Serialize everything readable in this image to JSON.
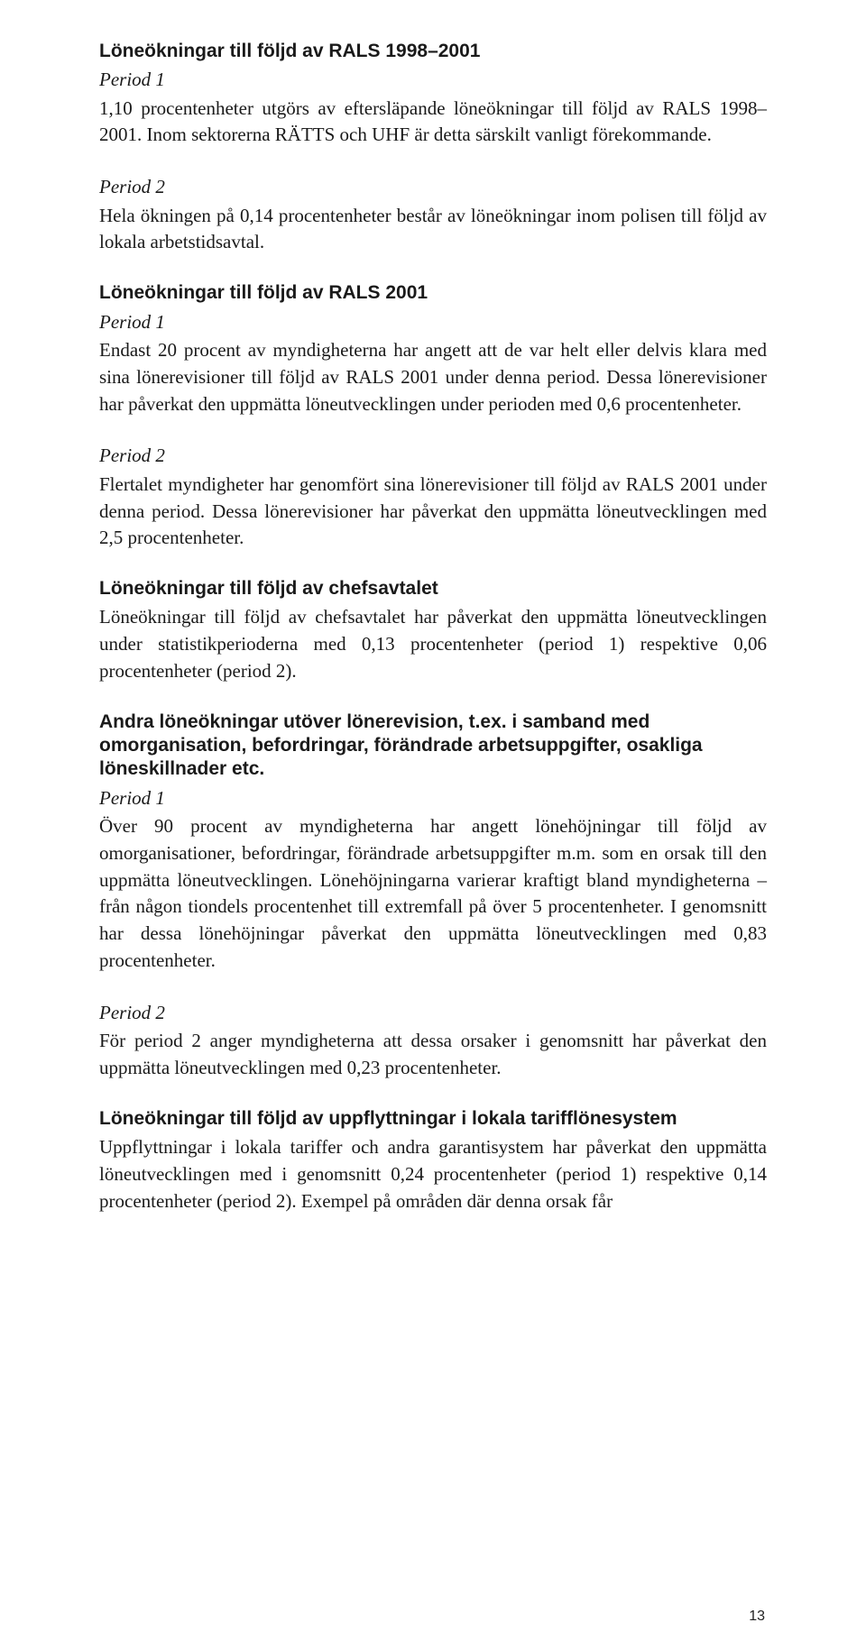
{
  "sections": [
    {
      "heading": "Löneökningar till följd av RALS 1998–2001",
      "blocks": [
        {
          "period": "Period 1",
          "text": "1,10 procentenheter utgörs av eftersläpande löneökningar till följd av RALS 1998–2001. Inom sektorerna RÄTTS och UHF är detta särskilt vanligt förekommande."
        },
        {
          "period": "Period 2",
          "text": "Hela ökningen på 0,14 procentenheter består av löneökningar inom polisen till följd av lokala arbetstidsavtal."
        }
      ]
    },
    {
      "heading": "Löneökningar till följd av RALS 2001",
      "blocks": [
        {
          "period": "Period 1",
          "text": "Endast 20 procent av myndigheterna har angett att de var helt eller delvis klara med sina lönerevisioner till följd av RALS 2001 under denna period. Dessa lönerevisioner har påverkat den uppmätta löneutvecklingen under perioden med 0,6 procentenheter."
        },
        {
          "period": "Period 2",
          "text": "Flertalet myndigheter har genomfört sina lönerevisioner till följd av RALS 2001 under denna period. Dessa lönerevisioner har påverkat den uppmätta löneutvecklingen med 2,5 procentenheter."
        }
      ]
    },
    {
      "heading": "Löneökningar till följd av chefsavtalet",
      "blocks": [
        {
          "period": "",
          "text": "Löneökningar till följd av chefsavtalet har påverkat den uppmätta löneutvecklingen under statistikperioderna med 0,13 procentenheter (period 1) respektive 0,06 procentenheter (period 2)."
        }
      ]
    },
    {
      "heading": "Andra löneökningar utöver lönerevision, t.ex. i samband med omorganisation, befordringar, förändrade arbetsuppgifter, osakliga löneskillnader etc.",
      "blocks": [
        {
          "period": "Period 1",
          "text": "Över 90 procent av myndigheterna har angett lönehöjningar till följd av omorganisationer, befordringar, förändrade arbetsuppgifter m.m. som en orsak till den uppmätta löneutvecklingen. Lönehöjningarna varierar kraftigt bland myndigheterna – från någon tiondels procentenhet till extremfall på över 5 procentenheter. I genomsnitt har dessa lönehöjningar påverkat den uppmätta löneutvecklingen med 0,83 procentenheter."
        },
        {
          "period": "Period 2",
          "text": "För period 2 anger myndigheterna att dessa orsaker i genomsnitt har påverkat den uppmätta löneutvecklingen med 0,23 procentenheter."
        }
      ]
    },
    {
      "heading": "Löneökningar till följd av uppflyttningar i lokala tarifflönesystem",
      "blocks": [
        {
          "period": "",
          "text": "Uppflyttningar i lokala tariffer och andra garantisystem har påverkat den uppmätta löneutvecklingen med i genomsnitt 0,24 procentenheter (period 1) respektive 0,14 procentenheter (period 2). Exempel på områden där denna orsak får"
        }
      ]
    }
  ],
  "page_number": "13"
}
